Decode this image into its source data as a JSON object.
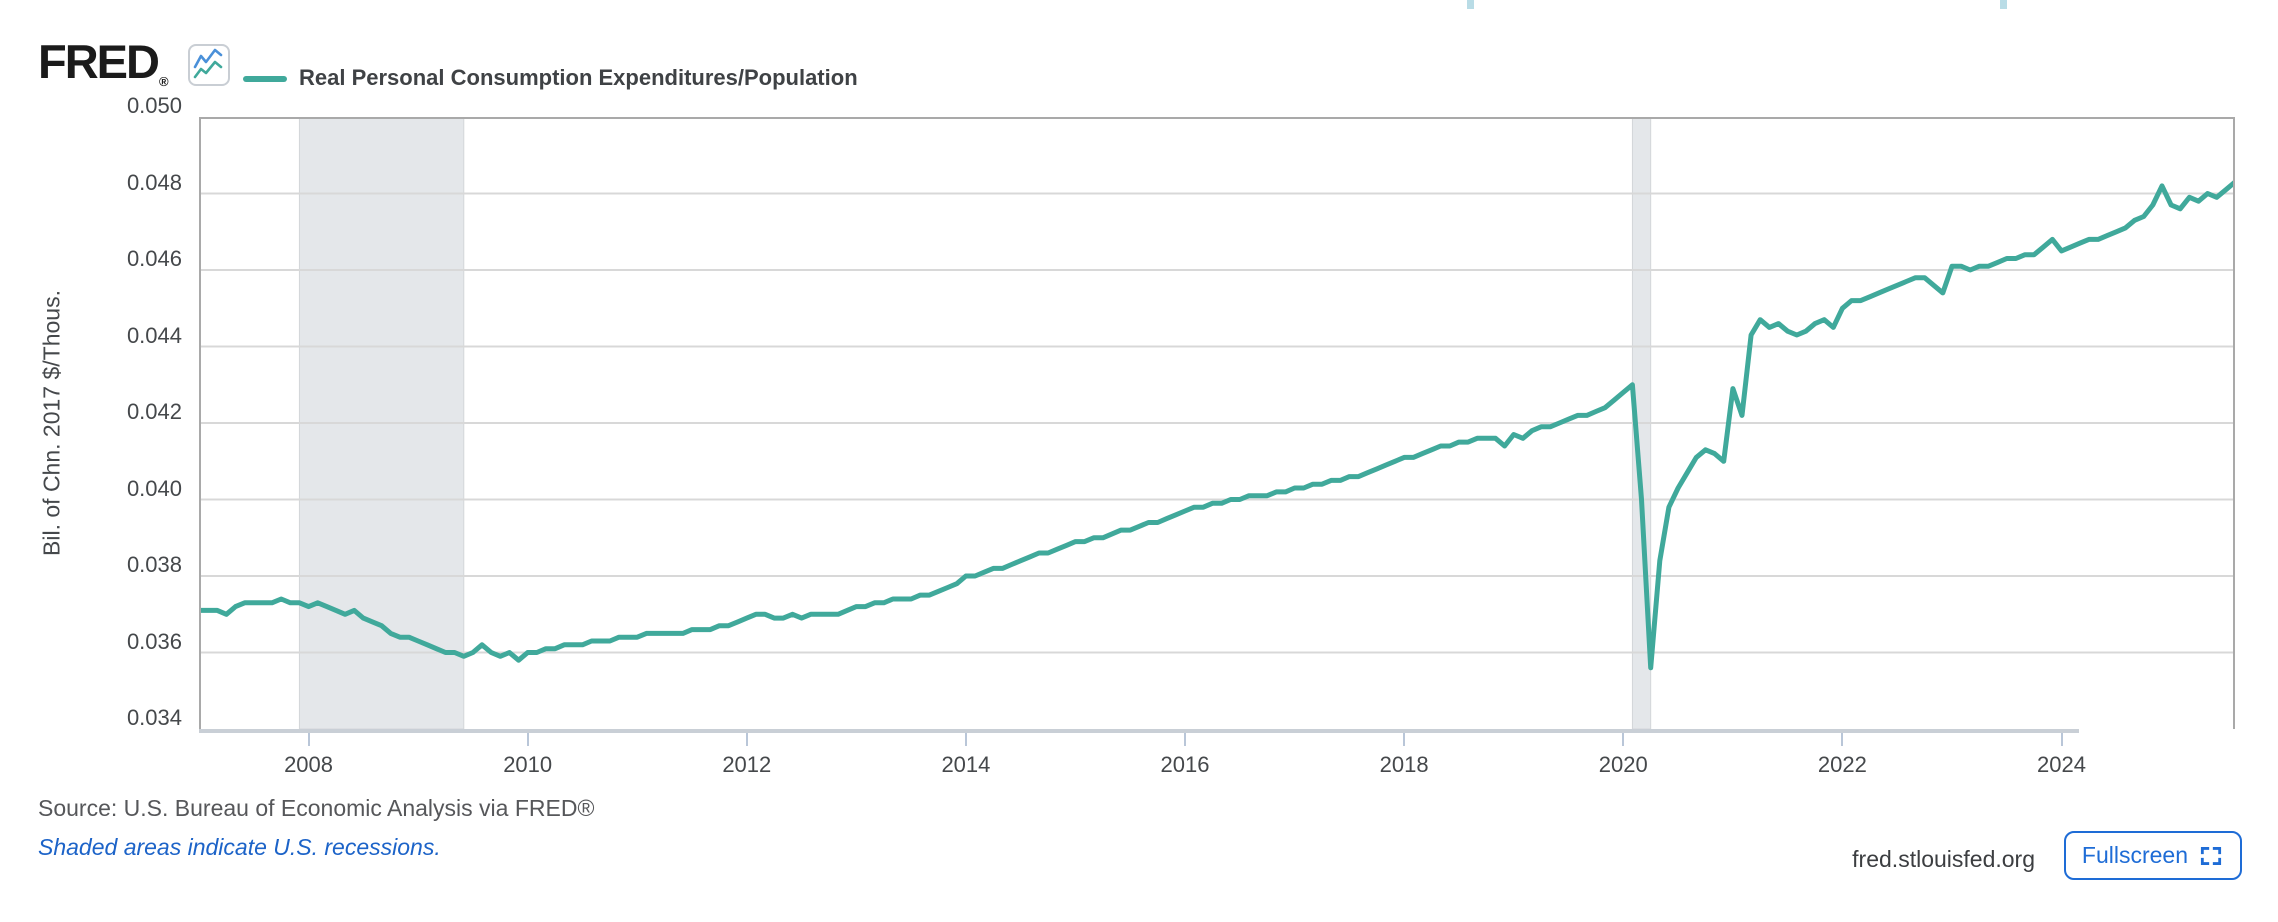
{
  "header": {
    "logo_text": "FRED",
    "logo_reg": "®",
    "legend_label": "Real Personal Consumption Expenditures/Population"
  },
  "footer": {
    "source_text": "Source: U.S. Bureau of Economic Analysis via FRED®",
    "recession_note": "Shaded areas indicate U.S. recessions.",
    "site_text": "fred.stlouisfed.org",
    "fullscreen_label": "Fullscreen"
  },
  "colors": {
    "line": "#40a99b",
    "recession_band": "#e4e7ea",
    "gridline": "#d8d8d8",
    "plot_border": "#a9a9a9",
    "axis_bar": "#c9cfd6",
    "tick_mark": "#b9c6d8",
    "accent_blue": "#1e6cd6",
    "note_blue": "#1c63c8",
    "icon_blue": "#4a90d9"
  },
  "chart_data": {
    "type": "line",
    "title": "Real Personal Consumption Expenditures/Population",
    "ylabel": "Bil. of Chn. 2017 $/Thous.",
    "frequency": "monthly",
    "x_start_year": 2007.0,
    "x_end_year": 2025.5833,
    "ylim": [
      0.034,
      0.05
    ],
    "grid": true,
    "legend_position": "top-left",
    "y_ticks": [
      "0.050",
      "0.048",
      "0.046",
      "0.044",
      "0.042",
      "0.040",
      "0.038",
      "0.036",
      "0.034"
    ],
    "y_tick_values": [
      0.05,
      0.048,
      0.046,
      0.044,
      0.042,
      0.04,
      0.038,
      0.036,
      0.034
    ],
    "x_ticks": [
      "2008",
      "2010",
      "2012",
      "2014",
      "2016",
      "2018",
      "2020",
      "2022",
      "2024"
    ],
    "x_tick_values": [
      2008,
      2010,
      2012,
      2014,
      2016,
      2018,
      2020,
      2022,
      2024
    ],
    "recessions": [
      {
        "start": 2007.9167,
        "end": 2009.4167
      },
      {
        "start": 2020.0833,
        "end": 2020.25
      }
    ],
    "series": [
      {
        "name": "Real Personal Consumption Expenditures/Population",
        "color": "#40a99b",
        "values": [
          0.0371,
          0.0371,
          0.0371,
          0.037,
          0.0372,
          0.0373,
          0.0373,
          0.0373,
          0.0373,
          0.0374,
          0.0373,
          0.0373,
          0.0372,
          0.0373,
          0.0372,
          0.0371,
          0.037,
          0.0371,
          0.0369,
          0.0368,
          0.0367,
          0.0365,
          0.0364,
          0.0364,
          0.0363,
          0.0362,
          0.0361,
          0.036,
          0.036,
          0.0359,
          0.036,
          0.0362,
          0.036,
          0.0359,
          0.036,
          0.0358,
          0.036,
          0.036,
          0.0361,
          0.0361,
          0.0362,
          0.0362,
          0.0362,
          0.0363,
          0.0363,
          0.0363,
          0.0364,
          0.0364,
          0.0364,
          0.0365,
          0.0365,
          0.0365,
          0.0365,
          0.0365,
          0.0366,
          0.0366,
          0.0366,
          0.0367,
          0.0367,
          0.0368,
          0.0369,
          0.037,
          0.037,
          0.0369,
          0.0369,
          0.037,
          0.0369,
          0.037,
          0.037,
          0.037,
          0.037,
          0.0371,
          0.0372,
          0.0372,
          0.0373,
          0.0373,
          0.0374,
          0.0374,
          0.0374,
          0.0375,
          0.0375,
          0.0376,
          0.0377,
          0.0378,
          0.038,
          0.038,
          0.0381,
          0.0382,
          0.0382,
          0.0383,
          0.0384,
          0.0385,
          0.0386,
          0.0386,
          0.0387,
          0.0388,
          0.0389,
          0.0389,
          0.039,
          0.039,
          0.0391,
          0.0392,
          0.0392,
          0.0393,
          0.0394,
          0.0394,
          0.0395,
          0.0396,
          0.0397,
          0.0398,
          0.0398,
          0.0399,
          0.0399,
          0.04,
          0.04,
          0.0401,
          0.0401,
          0.0401,
          0.0402,
          0.0402,
          0.0403,
          0.0403,
          0.0404,
          0.0404,
          0.0405,
          0.0405,
          0.0406,
          0.0406,
          0.0407,
          0.0408,
          0.0409,
          0.041,
          0.0411,
          0.0411,
          0.0412,
          0.0413,
          0.0414,
          0.0414,
          0.0415,
          0.0415,
          0.0416,
          0.0416,
          0.0416,
          0.0414,
          0.0417,
          0.0416,
          0.0418,
          0.0419,
          0.0419,
          0.042,
          0.0421,
          0.0422,
          0.0422,
          0.0423,
          0.0424,
          0.0426,
          0.0428,
          0.043,
          0.04,
          0.0356,
          0.0384,
          0.0398,
          0.0403,
          0.0407,
          0.0411,
          0.0413,
          0.0412,
          0.041,
          0.0429,
          0.0422,
          0.0443,
          0.0447,
          0.0445,
          0.0446,
          0.0444,
          0.0443,
          0.0444,
          0.0446,
          0.0447,
          0.0445,
          0.045,
          0.0452,
          0.0452,
          0.0453,
          0.0454,
          0.0455,
          0.0456,
          0.0457,
          0.0458,
          0.0458,
          0.0456,
          0.0454,
          0.0461,
          0.0461,
          0.046,
          0.0461,
          0.0461,
          0.0462,
          0.0463,
          0.0463,
          0.0464,
          0.0464,
          0.0466,
          0.0468,
          0.0465,
          0.0466,
          0.0467,
          0.0468,
          0.0468,
          0.0469,
          0.047,
          0.0471,
          0.0473,
          0.0474,
          0.0477,
          0.0482,
          0.0477,
          0.0476,
          0.0479,
          0.0478,
          0.048,
          0.0479,
          0.0481,
          0.0483
        ]
      }
    ]
  }
}
